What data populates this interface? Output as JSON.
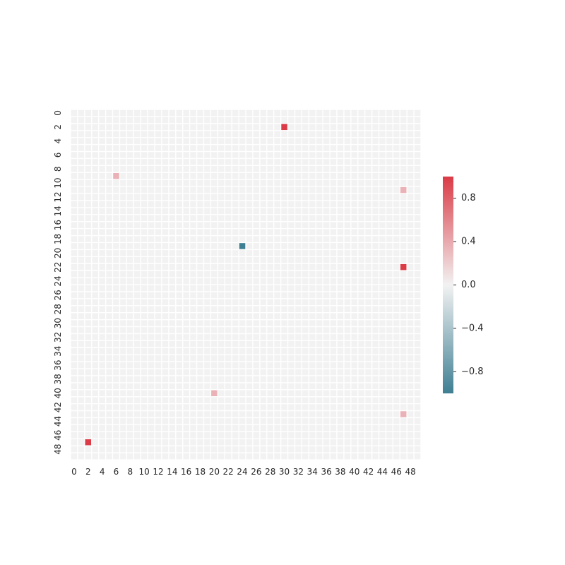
{
  "chart_data": {
    "type": "heatmap",
    "title": "",
    "xlabel": "",
    "ylabel": "",
    "n_rows": 50,
    "n_cols": 50,
    "x_tick_labels": [
      "0",
      "2",
      "4",
      "6",
      "8",
      "10",
      "12",
      "14",
      "16",
      "18",
      "20",
      "22",
      "24",
      "26",
      "28",
      "30",
      "32",
      "34",
      "36",
      "38",
      "40",
      "42",
      "44",
      "46",
      "48"
    ],
    "y_tick_labels": [
      "0",
      "2",
      "4",
      "6",
      "8",
      "10",
      "12",
      "14",
      "16",
      "18",
      "20",
      "22",
      "24",
      "26",
      "28",
      "30",
      "32",
      "34",
      "36",
      "38",
      "40",
      "42",
      "44",
      "46",
      "48"
    ],
    "default_value": 0.0,
    "nonzero_cells": [
      {
        "row": 2,
        "col": 30,
        "value": 1.0
      },
      {
        "row": 9,
        "col": 6,
        "value": 0.35
      },
      {
        "row": 11,
        "col": 47,
        "value": 0.35
      },
      {
        "row": 19,
        "col": 24,
        "value": -1.0
      },
      {
        "row": 22,
        "col": 47,
        "value": 1.0
      },
      {
        "row": 40,
        "col": 20,
        "value": 0.35
      },
      {
        "row": 43,
        "col": 47,
        "value": 0.35
      },
      {
        "row": 47,
        "col": 2,
        "value": 1.0
      }
    ],
    "colorbar": {
      "range": [
        -1.0,
        1.0
      ],
      "ticks": [
        -0.8,
        -0.4,
        0.0,
        0.4,
        0.8
      ],
      "tick_labels": [
        "−0.8",
        "−0.4",
        "0.0",
        "0.4",
        "0.8"
      ],
      "colors": {
        "negative": "#3f7f93",
        "zero": "#f2f2f2",
        "positive": "#da3b46"
      }
    },
    "empty_cell_color": "#f2f2f2",
    "grid": false,
    "legend": "colorbar-right"
  }
}
